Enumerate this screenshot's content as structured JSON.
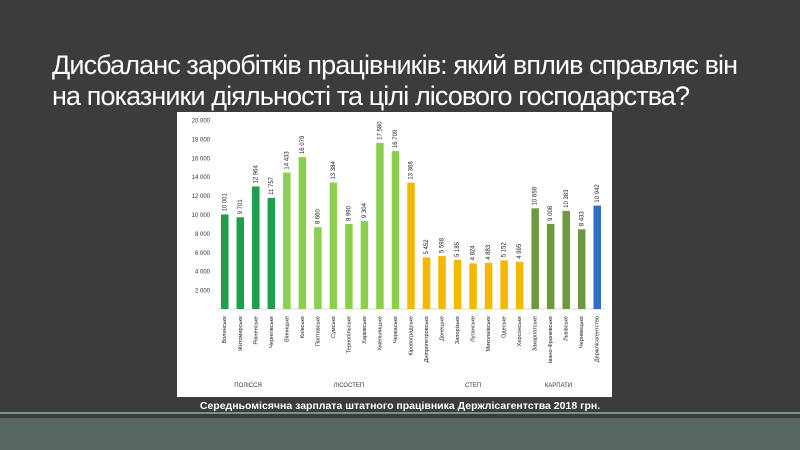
{
  "slide": {
    "title_line1": "Дисбаланс заробітків працівників: який вплив справляє він",
    "title_line2": "на показники діяльності та цілі лісового господарства?",
    "caption": "Середньомісячна зарплата штатного працівника Держлісагентства 2018 грн."
  },
  "chart_data": {
    "type": "bar",
    "title": "",
    "xlabel": "",
    "ylabel": "",
    "ylim": [
      0,
      20000
    ],
    "yticks": [
      2000,
      4000,
      6000,
      8000,
      10000,
      12000,
      14000,
      16000,
      18000,
      20000
    ],
    "ytick_labels": [
      "2 000",
      "4 000",
      "6 000",
      "8 000",
      "10 000",
      "12 000",
      "14 000",
      "16 000",
      "18 000",
      "20 000"
    ],
    "grid": false,
    "legend": "none",
    "categories": [
      "Волинське",
      "Житомирське",
      "Рівненське",
      "Чернігівське",
      "Вінницьке",
      "Київське",
      "Полтавське",
      "Сумське",
      "Тернопільське",
      "Харківське",
      "Хмельницьке",
      "Черкаське",
      "Кіровоградське",
      "Дніпропетровське",
      "Донецьке",
      "Запорізьке",
      "Луганське",
      "Миколаївське",
      "Одеське",
      "Херсонське",
      "Закарпатське",
      "Івано-Франківське",
      "Львівське",
      "Чернівецьке",
      "Держлісагентство"
    ],
    "values": [
      10001,
      9701,
      12964,
      11757,
      14433,
      16079,
      8660,
      13384,
      8990,
      9304,
      17580,
      16709,
      13368,
      5452,
      5598,
      5185,
      4824,
      4883,
      5152,
      4995,
      10658,
      9008,
      10383,
      8433,
      10942
    ],
    "value_labels": [
      "10 001",
      "9 701",
      "12 964",
      "11 757",
      "14 433",
      "16 079",
      "8 660",
      "13 384",
      "8 990",
      "9 304",
      "17 580",
      "16 709",
      "13 368",
      "5 452",
      "5 598",
      "5 185",
      "4 824",
      "4 883",
      "5 152",
      "4 995",
      "10 658",
      "9 008",
      "10 383",
      "8 433",
      "10 942"
    ],
    "bar_colors": [
      "#1f9e4b",
      "#1f9e4b",
      "#1f9e4b",
      "#1f9e4b",
      "#8bcf4c",
      "#8bcf4c",
      "#8bcf4c",
      "#8bcf4c",
      "#8bcf4c",
      "#8bcf4c",
      "#8bcf4c",
      "#8bcf4c",
      "#f5b800",
      "#f5b800",
      "#f5b800",
      "#f5b800",
      "#f5b800",
      "#f5b800",
      "#f5b800",
      "#f5b800",
      "#6d9a3c",
      "#6d9a3c",
      "#6d9a3c",
      "#6d9a3c",
      "#2f6fc2"
    ],
    "groups": [
      {
        "label": "ПОЛІССЯ",
        "start": 0,
        "end": 3
      },
      {
        "label": "ЛІСОСТЕП",
        "start": 4,
        "end": 12
      },
      {
        "label": "СТЕП",
        "start": 13,
        "end": 19
      },
      {
        "label": "КАРПАТИ",
        "start": 20,
        "end": 23
      }
    ]
  }
}
